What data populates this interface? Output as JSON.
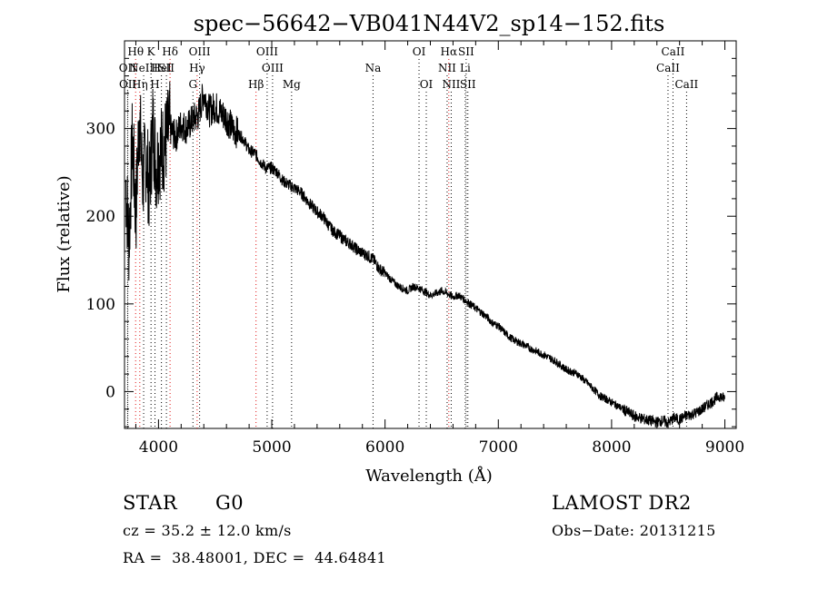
{
  "chart_data": {
    "type": "line",
    "title": "spec−56642−VB041N44V2_sp14−152.fits",
    "xlabel": "Wavelength (Å)",
    "ylabel": "Flux (relative)",
    "xlim": [
      3700,
      9100
    ],
    "ylim": [
      -42,
      400
    ],
    "xticks": [
      4000,
      5000,
      6000,
      7000,
      8000,
      9000
    ],
    "yticks": [
      0,
      100,
      200,
      300
    ],
    "xtick_labels": [
      "4000",
      "5000",
      "6000",
      "7000",
      "8000",
      "9000"
    ],
    "ytick_labels": [
      "0",
      "100",
      "200",
      "300"
    ],
    "grid": false,
    "series": [
      {
        "name": "spectrum",
        "x": [
          3710,
          3740,
          3770,
          3800,
          3830,
          3860,
          3890,
          3920,
          3950,
          3980,
          4000,
          4050,
          4100,
          4150,
          4200,
          4250,
          4300,
          4350,
          4400,
          4450,
          4500,
          4550,
          4600,
          4650,
          4700,
          4750,
          4800,
          4850,
          4900,
          4950,
          5000,
          5050,
          5100,
          5150,
          5200,
          5250,
          5300,
          5350,
          5400,
          5450,
          5500,
          5550,
          5600,
          5650,
          5700,
          5750,
          5800,
          5850,
          5900,
          5950,
          6000,
          6050,
          6100,
          6150,
          6200,
          6250,
          6300,
          6350,
          6400,
          6450,
          6500,
          6550,
          6600,
          6650,
          6700,
          6750,
          6800,
          6850,
          6900,
          6950,
          7000,
          7050,
          7100,
          7150,
          7200,
          7300,
          7400,
          7500,
          7600,
          7700,
          7800,
          7900,
          8000,
          8100,
          8200,
          8300,
          8400,
          8450,
          8500,
          8550,
          8600,
          8650,
          8700,
          8750,
          8800,
          8850,
          8900,
          8950,
          9000
        ],
        "y": [
          240,
          170,
          290,
          200,
          320,
          240,
          270,
          230,
          305,
          255,
          270,
          280,
          300,
          290,
          305,
          300,
          310,
          315,
          340,
          320,
          325,
          318,
          312,
          300,
          295,
          288,
          275,
          272,
          262,
          255,
          255,
          250,
          240,
          236,
          232,
          228,
          220,
          212,
          205,
          200,
          190,
          182,
          178,
          172,
          168,
          162,
          158,
          155,
          150,
          140,
          135,
          128,
          122,
          118,
          115,
          120,
          118,
          114,
          110,
          112,
          115,
          112,
          108,
          110,
          105,
          100,
          95,
          90,
          85,
          78,
          75,
          68,
          62,
          58,
          55,
          48,
          42,
          35,
          25,
          20,
          8,
          -5,
          -12,
          -20,
          -28,
          -32,
          -35,
          -33,
          -36,
          -30,
          -32,
          -28,
          -26,
          -24,
          -20,
          -15,
          -10,
          -5,
          -8
        ]
      }
    ],
    "lines": [
      {
        "x": 3727,
        "label": "OII",
        "row": 1,
        "color": "#000000"
      },
      {
        "x": 3729,
        "label": "OII",
        "row": 2,
        "color": "#000000"
      },
      {
        "x": 3798,
        "label": "Hθ",
        "row": 0,
        "color": "#e01010"
      },
      {
        "x": 3835,
        "label": "Hη",
        "row": 2,
        "color": "#e01010"
      },
      {
        "x": 3869,
        "label": "NeIII",
        "row": 1,
        "color": "#000000"
      },
      {
        "x": 3934,
        "label": "K",
        "row": 0,
        "color": "#000000"
      },
      {
        "x": 3969,
        "label": "H",
        "row": 2,
        "color": "#000000"
      },
      {
        "x": 4026,
        "label": "HeI",
        "row": 1,
        "color": "#000000"
      },
      {
        "x": 4070,
        "label": "SII",
        "row": 1,
        "color": "#000000"
      },
      {
        "x": 4102,
        "label": "Hδ",
        "row": 0,
        "color": "#e01010"
      },
      {
        "x": 4304,
        "label": "G",
        "row": 2,
        "color": "#000000"
      },
      {
        "x": 4341,
        "label": "Hγ",
        "row": 1,
        "color": "#e01010"
      },
      {
        "x": 4363,
        "label": "OIII",
        "row": 0,
        "color": "#000000"
      },
      {
        "x": 4861,
        "label": "Hβ",
        "row": 2,
        "color": "#e01010"
      },
      {
        "x": 4959,
        "label": "OIII",
        "row": 0,
        "color": "#000000"
      },
      {
        "x": 5007,
        "label": "OIII",
        "row": 1,
        "color": "#000000"
      },
      {
        "x": 5175,
        "label": "Mg",
        "row": 2,
        "color": "#000000"
      },
      {
        "x": 5894,
        "label": "Na",
        "row": 1,
        "color": "#000000"
      },
      {
        "x": 6300,
        "label": "OI",
        "row": 0,
        "color": "#000000"
      },
      {
        "x": 6364,
        "label": "OI",
        "row": 2,
        "color": "#000000"
      },
      {
        "x": 6548,
        "label": "NII",
        "row": 1,
        "color": "#000000"
      },
      {
        "x": 6563,
        "label": "Hα",
        "row": 0,
        "color": "#e01010"
      },
      {
        "x": 6584,
        "label": "NII",
        "row": 2,
        "color": "#000000"
      },
      {
        "x": 6708,
        "label": "Li",
        "row": 1,
        "color": "#000000"
      },
      {
        "x": 6716,
        "label": "SII",
        "row": 0,
        "color": "#000000"
      },
      {
        "x": 6731,
        "label": "SII",
        "row": 2,
        "color": "#000000"
      },
      {
        "x": 8498,
        "label": "CaII",
        "row": 1,
        "color": "#000000"
      },
      {
        "x": 8542,
        "label": "CaII",
        "row": 0,
        "color": "#000000"
      },
      {
        "x": 8662,
        "label": "CaII",
        "row": 2,
        "color": "#000000"
      }
    ]
  },
  "info": {
    "object_class": "STAR",
    "subclass": "G0",
    "survey": "LAMOST DR2",
    "redshift": "cz = 35.2 ± 12.0 km/s",
    "obs_date": "Obs−Date: 20131215",
    "coords": "RA =  38.48001, DEC =  44.64841"
  }
}
